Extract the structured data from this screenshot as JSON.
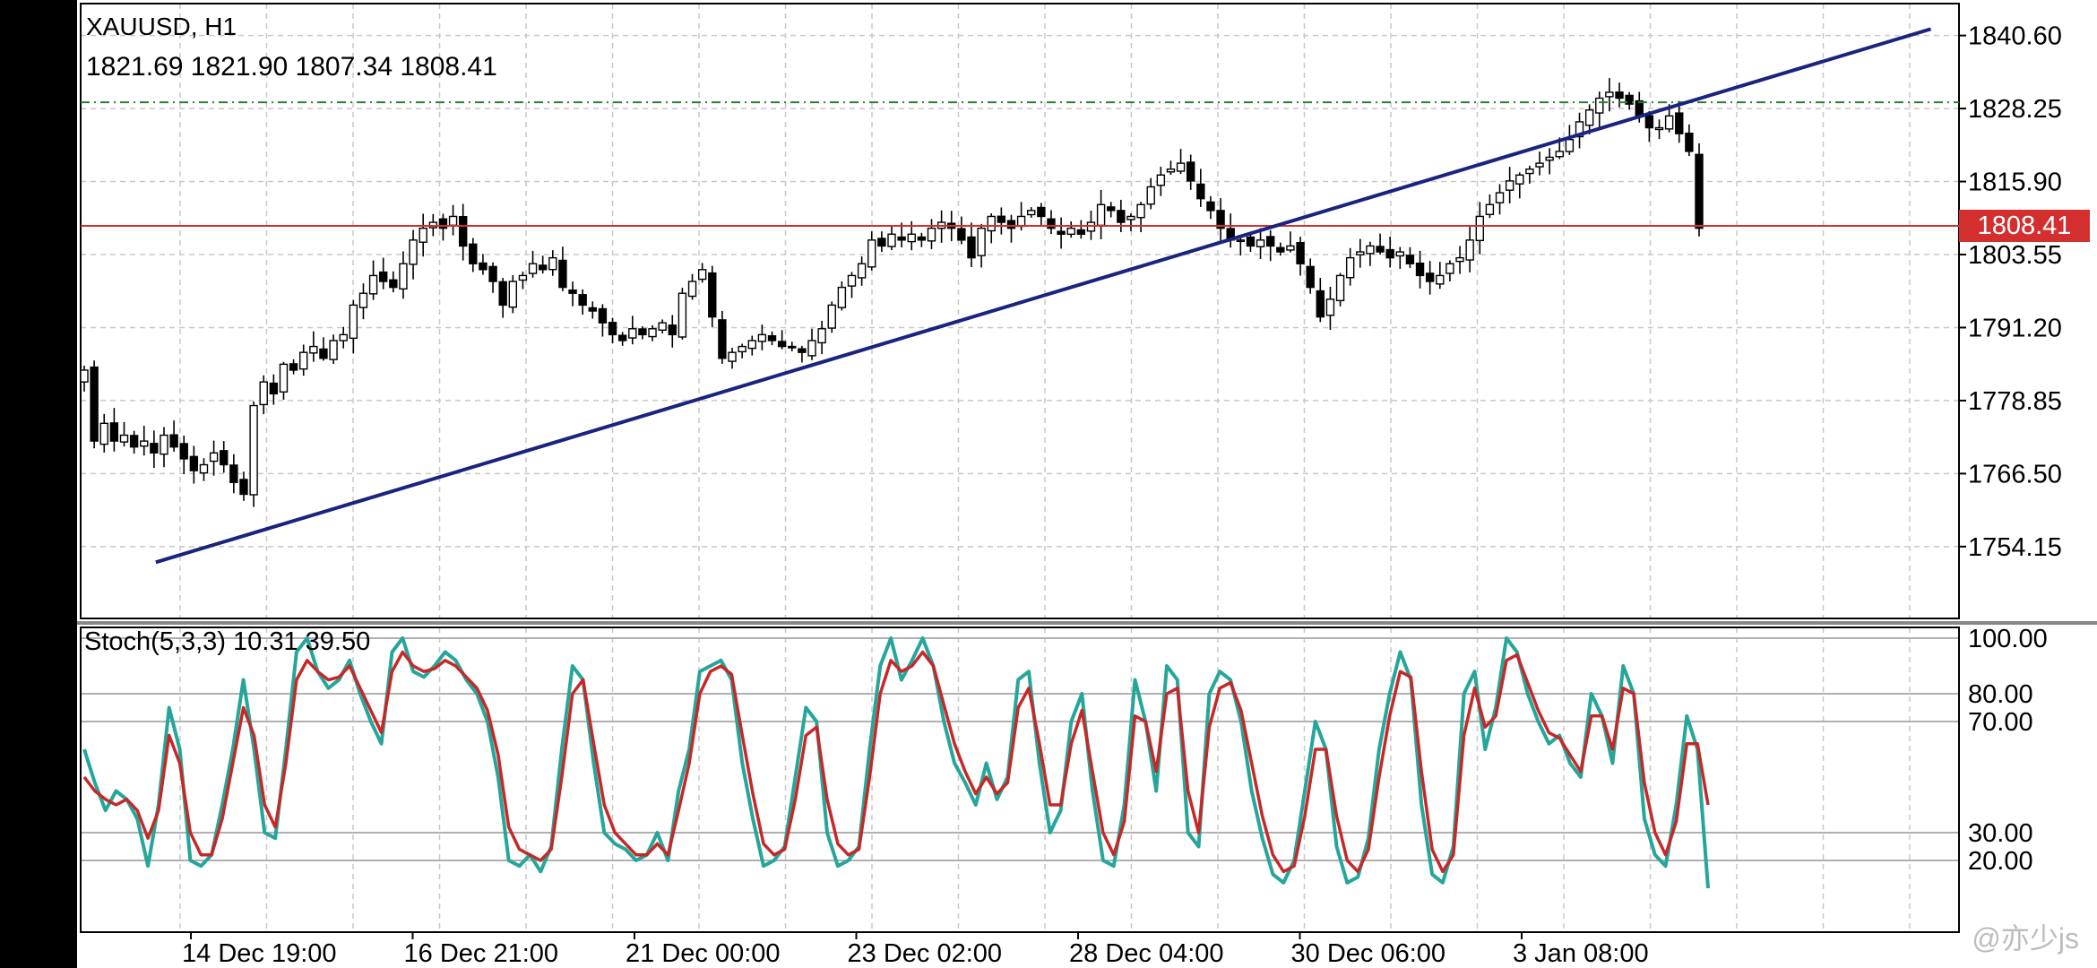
{
  "header": {
    "symbol": "XAUUSD, H1",
    "ohlc": "1821.69 1821.90 1807.34 1808.41"
  },
  "price_badge": {
    "text": "1808.41",
    "color": "#d32f2f"
  },
  "indicator": {
    "label": "Stoch(5,3,3) 10.31 39.50",
    "main_color": "#26a69a",
    "signal_color": "#c62828"
  },
  "trendline": {
    "color": "#1a237e"
  },
  "level_line": {
    "color": "#2e7d32"
  },
  "watermark": "@亦少js",
  "chart_data": [
    {
      "type": "candlestick",
      "ylim": [
        1742.0,
        1846.0
      ],
      "y_ticks": [
        1840.6,
        1828.25,
        1815.9,
        1803.55,
        1791.2,
        1778.85,
        1766.5,
        1754.15
      ],
      "y_tick_labels": [
        "1840.60",
        "1828.25",
        "1815.90",
        "1803.55",
        "1791.20",
        "1778.85",
        "1766.50",
        "1754.15"
      ],
      "x_tick_labels": [
        "14 Dec 19:00",
        "16 Dec 21:00",
        "21 Dec 00:00",
        "23 Dec 02:00",
        "28 Dec 04:00",
        "30 Dec 06:00",
        "3 Jan 08:00"
      ],
      "current_price": 1808.41,
      "horizontal_level": 1829.3,
      "trendline": [
        [
          0.04,
          1751.5
        ],
        [
          0.985,
          1841.7
        ]
      ],
      "closes": [
        1784,
        1772,
        1775,
        1772,
        1773,
        1771,
        1772,
        1770,
        1773,
        1771,
        1769,
        1767,
        1768,
        1770,
        1768,
        1765,
        1763,
        1778,
        1782,
        1780,
        1785,
        1784,
        1787,
        1788,
        1786,
        1789,
        1790,
        1795,
        1797,
        1800,
        1799,
        1798,
        1802,
        1806,
        1808,
        1809,
        1808,
        1810,
        1805,
        1802,
        1801,
        1799,
        1795,
        1799,
        1800,
        1802,
        1801,
        1803,
        1798,
        1797,
        1795,
        1794,
        1792,
        1790,
        1789,
        1791,
        1790,
        1791,
        1792,
        1790,
        1797,
        1799,
        1801,
        1793,
        1786,
        1787,
        1788,
        1789,
        1790,
        1789,
        1788,
        1788,
        1787,
        1789,
        1791,
        1795,
        1798,
        1800,
        1802,
        1806,
        1805,
        1807,
        1806,
        1807,
        1806,
        1808,
        1809,
        1808,
        1806,
        1803,
        1808,
        1810,
        1809,
        1808,
        1810,
        1811,
        1810,
        1808,
        1807,
        1808,
        1807,
        1809,
        1812,
        1811,
        1809,
        1810,
        1812,
        1815,
        1817,
        1818,
        1819,
        1816,
        1813,
        1811,
        1808,
        1806,
        1806,
        1805,
        1806,
        1805,
        1804,
        1805,
        1802,
        1798,
        1793,
        1796,
        1800,
        1803,
        1804,
        1805,
        1804,
        1803,
        1804,
        1802,
        1800,
        1799,
        1800,
        1802,
        1803,
        1806,
        1810,
        1812,
        1814,
        1816,
        1817,
        1818,
        1819,
        1820,
        1821,
        1823,
        1826,
        1828,
        1830,
        1831,
        1830,
        1829,
        1827,
        1825,
        1825,
        1827,
        1824,
        1821,
        1808
      ],
      "notes": "closes are approximate hourly close prices read from the plot, left to right"
    },
    {
      "type": "line",
      "title": "Stoch(5,3,3)",
      "ylim": [
        0,
        100
      ],
      "y_ticks": [
        100,
        80,
        70,
        30,
        20
      ],
      "y_tick_labels": [
        "100.00",
        "80.00",
        "70.00",
        "30.00",
        "20.00"
      ],
      "series": [
        {
          "name": "Main",
          "values": [
            60,
            48,
            38,
            45,
            42,
            35,
            18,
            40,
            75,
            60,
            20,
            18,
            22,
            40,
            60,
            85,
            60,
            30,
            28,
            60,
            95,
            100,
            88,
            82,
            85,
            92,
            80,
            70,
            62,
            95,
            100,
            88,
            86,
            90,
            95,
            92,
            85,
            80,
            70,
            50,
            20,
            18,
            22,
            16,
            25,
            60,
            90,
            85,
            55,
            30,
            26,
            24,
            20,
            22,
            30,
            20,
            45,
            60,
            88,
            90,
            92,
            85,
            55,
            35,
            18,
            20,
            25,
            50,
            75,
            70,
            30,
            18,
            20,
            25,
            60,
            90,
            100,
            85,
            92,
            100,
            90,
            70,
            55,
            48,
            40,
            55,
            42,
            50,
            85,
            88,
            55,
            30,
            38,
            70,
            80,
            45,
            20,
            18,
            40,
            85,
            70,
            45,
            90,
            85,
            30,
            25,
            80,
            88,
            85,
            70,
            45,
            28,
            15,
            12,
            20,
            45,
            70,
            60,
            25,
            12,
            14,
            28,
            60,
            80,
            95,
            85,
            40,
            15,
            12,
            25,
            80,
            88,
            60,
            75,
            100,
            95,
            80,
            70,
            62,
            65,
            55,
            50,
            80,
            72,
            55,
            90,
            80,
            35,
            22,
            18,
            40,
            72,
            60,
            10
          ]
        },
        {
          "name": "Signal",
          "values": [
            50,
            45,
            42,
            40,
            42,
            38,
            28,
            38,
            65,
            55,
            30,
            22,
            22,
            35,
            55,
            75,
            65,
            40,
            32,
            55,
            85,
            92,
            88,
            85,
            86,
            90,
            82,
            74,
            66,
            88,
            95,
            90,
            88,
            89,
            92,
            90,
            86,
            82,
            74,
            58,
            32,
            24,
            22,
            20,
            24,
            50,
            80,
            85,
            62,
            40,
            30,
            26,
            22,
            22,
            26,
            22,
            38,
            55,
            80,
            88,
            90,
            87,
            65,
            44,
            26,
            22,
            24,
            42,
            65,
            68,
            42,
            26,
            22,
            24,
            50,
            80,
            92,
            88,
            90,
            95,
            90,
            76,
            62,
            52,
            44,
            50,
            44,
            48,
            75,
            82,
            62,
            40,
            40,
            62,
            74,
            52,
            30,
            22,
            34,
            72,
            70,
            52,
            80,
            82,
            45,
            30,
            68,
            82,
            84,
            74,
            55,
            36,
            22,
            16,
            18,
            36,
            60,
            60,
            36,
            20,
            16,
            24,
            50,
            72,
            88,
            86,
            52,
            24,
            16,
            22,
            65,
            82,
            68,
            72,
            92,
            94,
            84,
            74,
            66,
            64,
            58,
            52,
            72,
            72,
            60,
            82,
            80,
            48,
            30,
            22,
            34,
            62,
            62,
            40
          ]
        }
      ]
    }
  ]
}
